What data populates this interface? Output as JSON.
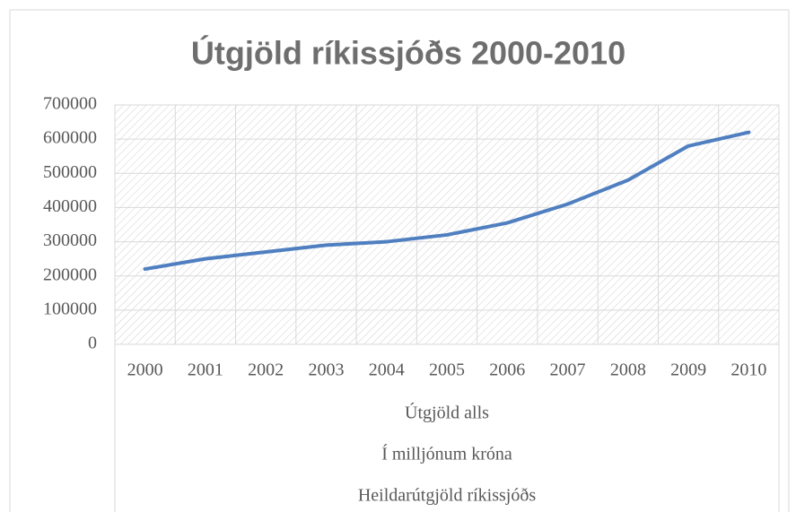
{
  "chart_data": {
    "type": "line",
    "title": "Útgjöld ríkissjóðs 2000-2010",
    "categories": [
      "2000",
      "2001",
      "2002",
      "2003",
      "2004",
      "2005",
      "2006",
      "2007",
      "2008",
      "2009",
      "2010"
    ],
    "category_groups": [
      "Útgjöld alls",
      "Í milljónum króna",
      "Heildarútgjöld ríkissjóðs"
    ],
    "series": [
      {
        "name": "Heildarútgjöld ríkissjóðs",
        "color": "#4f7fc0",
        "values": [
          220000,
          250000,
          270000,
          290000,
          300000,
          320000,
          355000,
          410000,
          480000,
          580000,
          620000
        ]
      }
    ],
    "ylim": [
      0,
      700000
    ],
    "yticks": [
      0,
      100000,
      200000,
      300000,
      400000,
      500000,
      600000,
      700000
    ],
    "grid": true
  }
}
